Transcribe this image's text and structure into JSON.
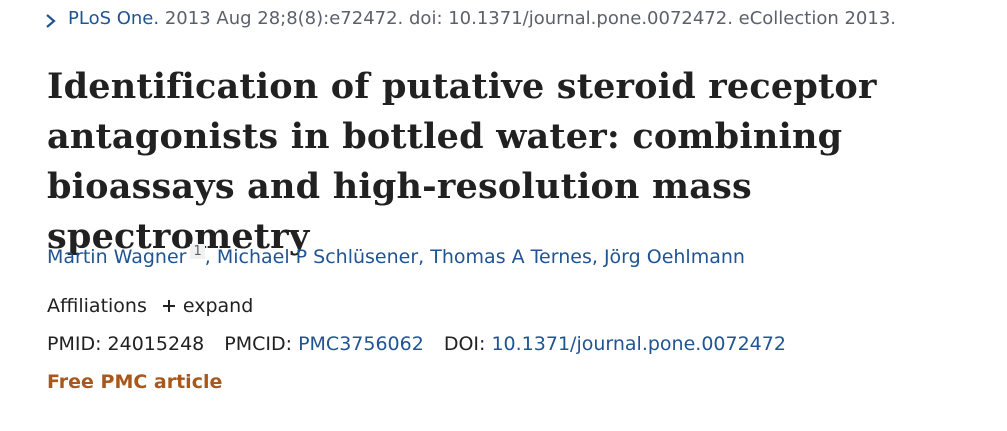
{
  "citation": {
    "journal": "PLoS One.",
    "details": "2013 Aug 28;8(8):e72472. doi: 10.1371/journal.pone.0072472. eCollection 2013."
  },
  "title": "Identification of putative steroid receptor antagonists in bottled water: combining bioassays and high-resolution mass spectrometry",
  "authors": {
    "separator": ", ",
    "list": [
      {
        "name": "Martin Wagner",
        "affiliation": "1"
      },
      {
        "name": "Michael P Schlüsener"
      },
      {
        "name": "Thomas A Ternes"
      },
      {
        "name": "Jörg Oehlmann"
      }
    ]
  },
  "affiliations": {
    "label": "Affiliations",
    "toggle": "expand"
  },
  "identifiers": [
    {
      "label": "PMID:",
      "value": "24015248"
    },
    {
      "label": "PMCID:",
      "value": "PMC3756062"
    },
    {
      "label": "DOI:",
      "value": "10.1371/journal.pone.0072472"
    }
  ],
  "badge": "Free PMC article"
}
